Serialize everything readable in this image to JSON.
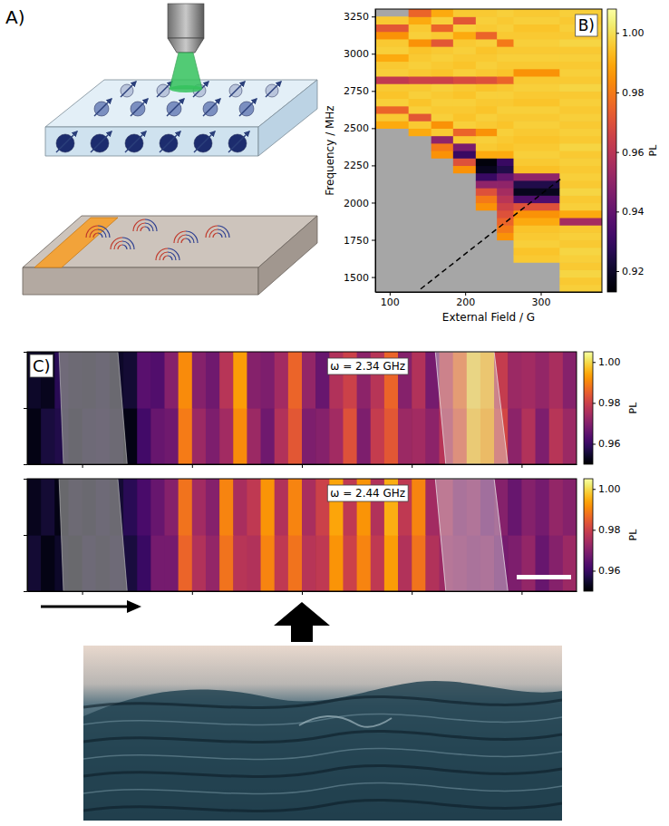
{
  "diagram": {
    "label": "A)"
  },
  "chart_data": [
    {
      "type": "heatmap",
      "title": "B)",
      "x_label": "External Field / G",
      "y_label": "Frequency / MHz",
      "xlim": [
        81,
        381
      ],
      "ylim": [
        1400,
        3300
      ],
      "xticks": [
        100,
        200,
        300
      ],
      "yticks": [
        1500,
        1750,
        2000,
        2250,
        2500,
        2750,
        3000,
        3250
      ],
      "color": "inferno",
      "x_edges": [
        81,
        125,
        155,
        184,
        214,
        242,
        264,
        325,
        381
      ],
      "y_edges": [
        1400,
        1450,
        1500,
        1550,
        1600,
        1650,
        1700,
        1750,
        1800,
        1850,
        1900,
        1950,
        2000,
        2050,
        2100,
        2150,
        2200,
        2250,
        2300,
        2350,
        2400,
        2450,
        2500,
        2550,
        2600,
        2650,
        2700,
        2750,
        2800,
        2850,
        2900,
        2950,
        3000,
        3050,
        3100,
        3150,
        3200,
        3250,
        3300
      ],
      "z": [
        [
          null,
          null,
          null,
          null,
          null,
          null,
          null,
          0.997
        ],
        [
          null,
          null,
          null,
          null,
          null,
          null,
          null,
          0.996
        ],
        [
          null,
          null,
          null,
          null,
          null,
          null,
          null,
          0.998
        ],
        [
          null,
          null,
          null,
          null,
          null,
          null,
          null,
          0.996
        ],
        [
          null,
          null,
          null,
          null,
          null,
          null,
          0.996,
          0.997
        ],
        [
          null,
          null,
          null,
          null,
          null,
          null,
          0.995,
          0.998
        ],
        [
          null,
          null,
          null,
          null,
          null,
          null,
          0.997,
          0.996
        ],
        [
          null,
          null,
          null,
          null,
          null,
          0.985,
          0.996,
          0.997
        ],
        [
          null,
          null,
          null,
          null,
          null,
          0.98,
          0.995,
          0.996
        ],
        [
          null,
          null,
          null,
          null,
          null,
          0.975,
          0.99,
          0.955
        ],
        [
          null,
          null,
          null,
          null,
          null,
          0.97,
          0.985,
          0.99
        ],
        [
          null,
          null,
          null,
          null,
          0.985,
          0.965,
          0.97,
          0.997
        ],
        [
          null,
          null,
          null,
          null,
          0.98,
          0.96,
          0.935,
          0.996
        ],
        [
          null,
          null,
          null,
          null,
          0.97,
          0.955,
          0.918,
          0.998
        ],
        [
          null,
          null,
          null,
          null,
          0.95,
          0.95,
          0.925,
          0.996
        ],
        [
          null,
          null,
          null,
          null,
          0.93,
          0.94,
          0.95,
          0.997
        ],
        [
          null,
          null,
          null,
          0.985,
          0.918,
          0.925,
          0.994,
          0.996
        ],
        [
          null,
          null,
          null,
          0.97,
          0.915,
          0.93,
          0.996,
          0.997
        ],
        [
          null,
          null,
          0.985,
          0.93,
          0.99,
          0.99,
          0.997,
          0.996
        ],
        [
          null,
          null,
          0.98,
          0.945,
          0.996,
          0.995,
          0.996,
          0.998
        ],
        [
          null,
          null,
          0.95,
          0.996,
          0.997,
          0.996,
          0.995,
          0.996
        ],
        [
          null,
          0.99,
          0.996,
          0.975,
          0.985,
          0.997,
          0.996,
          0.997
        ],
        [
          0.99,
          0.996,
          0.985,
          0.997,
          0.996,
          0.995,
          0.997,
          0.996
        ],
        [
          0.996,
          0.972,
          0.997,
          0.995,
          0.997,
          0.996,
          0.996,
          0.997
        ],
        [
          0.975,
          0.997,
          0.996,
          0.996,
          0.995,
          0.997,
          0.997,
          0.996
        ],
        [
          0.997,
          0.995,
          0.997,
          0.997,
          0.996,
          0.996,
          0.995,
          0.997
        ],
        [
          0.995,
          0.997,
          0.996,
          0.995,
          0.997,
          0.997,
          0.996,
          0.996
        ],
        [
          0.996,
          0.996,
          0.997,
          0.996,
          0.995,
          0.996,
          0.997,
          0.998
        ],
        [
          0.962,
          0.965,
          0.965,
          0.968,
          0.97,
          0.975,
          0.996,
          0.996
        ],
        [
          0.997,
          0.996,
          0.995,
          0.997,
          0.996,
          0.995,
          0.985,
          0.997
        ],
        [
          0.996,
          0.997,
          0.996,
          0.995,
          0.997,
          0.996,
          0.996,
          0.996
        ],
        [
          0.99,
          0.996,
          0.997,
          0.996,
          0.996,
          0.997,
          0.997,
          0.997
        ],
        [
          0.997,
          0.995,
          0.996,
          0.997,
          0.995,
          0.996,
          0.996,
          0.996
        ],
        [
          0.996,
          0.985,
          0.972,
          0.996,
          0.997,
          0.98,
          0.997,
          0.998
        ],
        [
          0.985,
          0.997,
          0.996,
          0.99,
          0.975,
          0.996,
          0.996,
          0.996
        ],
        [
          0.972,
          0.996,
          0.975,
          0.997,
          0.996,
          0.997,
          0.995,
          0.997
        ],
        [
          0.996,
          0.99,
          0.997,
          0.972,
          0.997,
          0.996,
          0.997,
          0.996
        ],
        [
          null,
          0.975,
          0.99,
          0.996,
          0.996,
          0.997,
          0.996,
          0.997
        ]
      ],
      "colorbar": {
        "label": "PL",
        "range": [
          0.913,
          1.008
        ],
        "ticks": [
          0.92,
          0.94,
          0.96,
          0.98,
          {
            "value": 1,
            "label": "1.00"
          }
        ]
      },
      "lines": [
        {
          "x": [
            141,
            329
          ],
          "y": [
            1420,
            2170
          ],
          "color": "#000000",
          "line_style": "dashed"
        }
      ]
    },
    {
      "type": "heatmap",
      "title": "ω = 2.34 GHz",
      "panel_label": "C)",
      "xlim": [
        0,
        50
      ],
      "ylim": [
        0,
        10
      ],
      "xticks": [
        5,
        15,
        25,
        35,
        45
      ],
      "yticks": [
        0,
        5,
        10
      ],
      "tick_labels": false,
      "color": "inferno",
      "z": [
        [
          0.952,
          0.956,
          0.957,
          0.954,
          0.957,
          0.958,
          0.956,
          0.952,
          0.961,
          0.966,
          0.967,
          0.989,
          0.973,
          0.969,
          0.974,
          0.991,
          0.973,
          0.967,
          0.976,
          0.984,
          0.969,
          0.97,
          0.974,
          0.983,
          0.969,
          0.979,
          0.984,
          0.973,
          0.974,
          0.971,
          0.977,
          0.984,
          0.997,
          0.994,
          0.981,
          0.971,
          0.976,
          0.969,
          0.977,
          0.973
        ],
        [
          0.954,
          0.953,
          0.958,
          0.956,
          0.955,
          0.957,
          0.954,
          0.955,
          0.964,
          0.963,
          0.97,
          0.991,
          0.97,
          0.967,
          0.977,
          0.993,
          0.97,
          0.969,
          0.974,
          0.986,
          0.972,
          0.966,
          0.976,
          0.98,
          0.971,
          0.977,
          0.986,
          0.97,
          0.976,
          0.968,
          0.979,
          0.987,
          0.999,
          0.996,
          0.979,
          0.973,
          0.974,
          0.972,
          0.975,
          0.97
        ]
      ],
      "colorbar": {
        "label": "PL",
        "range": [
          0.95,
          1.005
        ],
        "ticks": [
          0.96,
          0.98,
          {
            "value": 1,
            "label": "1.00"
          }
        ]
      }
    },
    {
      "type": "heatmap",
      "title": "ω = 2.44 GHz",
      "xlim": [
        0,
        50
      ],
      "ylim": [
        0,
        10
      ],
      "xticks": [
        5,
        15,
        25,
        35,
        45
      ],
      "yticks": [
        0,
        5,
        10
      ],
      "tick_labels": false,
      "color": "inferno",
      "z": [
        [
          0.955,
          0.952,
          0.954,
          0.953,
          0.957,
          0.955,
          0.957,
          0.956,
          0.96,
          0.968,
          0.968,
          0.986,
          0.976,
          0.972,
          0.988,
          0.977,
          0.976,
          0.99,
          0.978,
          0.988,
          0.977,
          0.978,
          0.992,
          0.98,
          0.99,
          0.978,
          0.993,
          0.976,
          0.988,
          0.976,
          0.973,
          0.972,
          0.97,
          0.971,
          0.968,
          0.969,
          0.972,
          0.966,
          0.97,
          0.973
        ],
        [
          0.953,
          0.955,
          0.952,
          0.956,
          0.954,
          0.957,
          0.955,
          0.958,
          0.962,
          0.966,
          0.97,
          0.988,
          0.974,
          0.97,
          0.99,
          0.975,
          0.978,
          0.992,
          0.976,
          0.99,
          0.975,
          0.98,
          0.994,
          0.978,
          0.992,
          0.976,
          0.995,
          0.978,
          0.99,
          0.974,
          0.975,
          0.97,
          0.972,
          0.968,
          0.97,
          0.966,
          0.97,
          0.968,
          0.972,
          0.97
        ]
      ],
      "colorbar": {
        "label": "PL",
        "range": [
          0.95,
          1.005
        ],
        "ticks": [
          0.96,
          0.98,
          {
            "value": 1,
            "label": "1.00"
          }
        ]
      }
    }
  ]
}
